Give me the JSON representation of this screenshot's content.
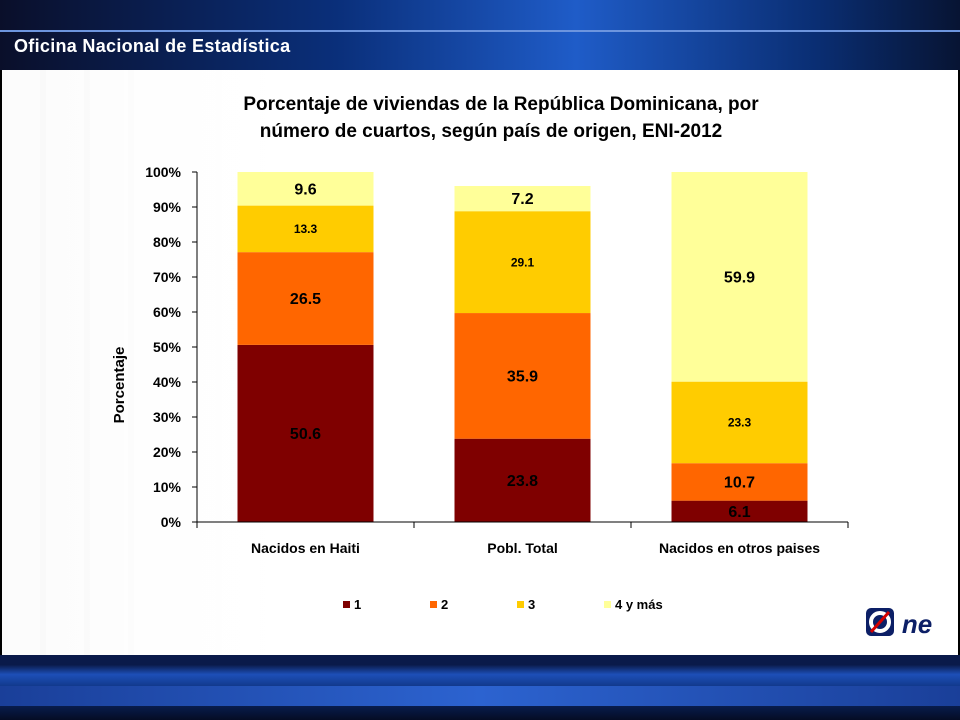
{
  "header": {
    "title": "Oficina Nacional de Estadística"
  },
  "logo": {
    "text": "One"
  },
  "colors": {
    "s1": "#7f0000",
    "s2": "#ff6600",
    "s3": "#ffcc00",
    "s4": "#ffff99"
  },
  "chart_data": {
    "type": "bar",
    "stacked": true,
    "title_lines": [
      "Porcentaje de  viviendas de la República Dominicana, por",
      "número de cuartos, según país de origen, ENI-2012"
    ],
    "xlabel": "",
    "ylabel": "Porcentaje",
    "ylim": [
      0,
      100
    ],
    "yticks": [
      "0%",
      "10%",
      "20%",
      "30%",
      "40%",
      "50%",
      "60%",
      "70%",
      "80%",
      "90%",
      "100%"
    ],
    "categories": [
      "Nacidos en Haiti",
      "Pobl. Total",
      "Nacidos en otros paises"
    ],
    "series": [
      {
        "name": "1",
        "values": [
          50.6,
          23.8,
          6.1
        ],
        "labels": [
          "50.6",
          "23.8",
          "6.1"
        ],
        "color": "#7f0000"
      },
      {
        "name": "2",
        "values": [
          26.5,
          35.9,
          10.7
        ],
        "labels": [
          "26.5",
          "35.9",
          "10.7"
        ],
        "color": "#ff6600"
      },
      {
        "name": "3",
        "values": [
          13.3,
          29.1,
          23.3
        ],
        "labels": [
          "13.3",
          "29.1",
          "23.3"
        ],
        "color": "#ffcc00"
      },
      {
        "name": "4 y más",
        "values": [
          9.6,
          7.2,
          59.9
        ],
        "labels": [
          "9.6",
          "7.2",
          "59.9"
        ],
        "color": "#ffff99"
      }
    ],
    "legend_position": "bottom",
    "grid": false
  }
}
